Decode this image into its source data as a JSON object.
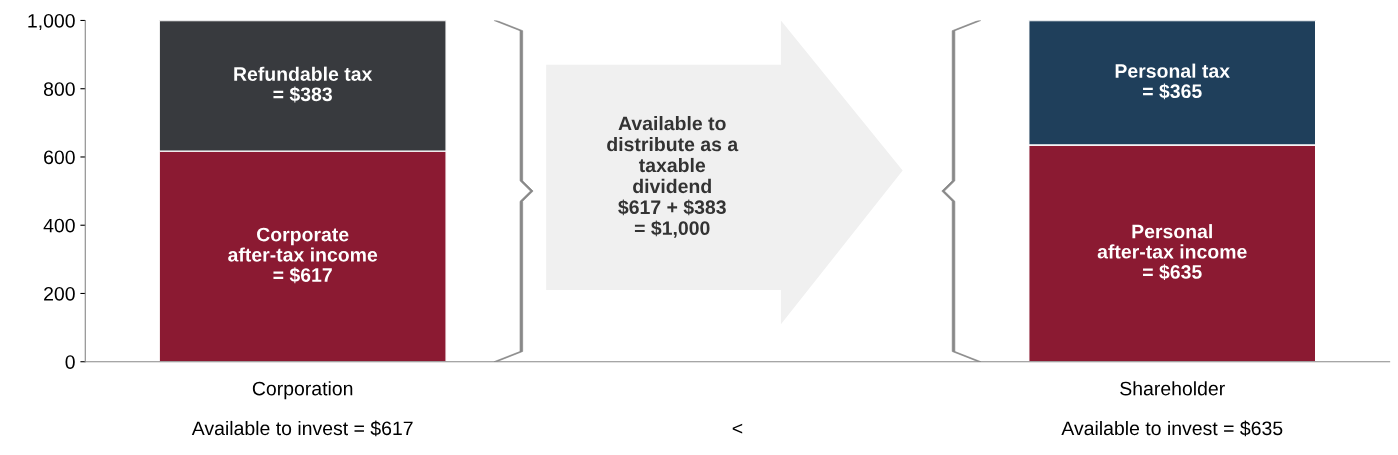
{
  "chart_data": {
    "type": "bar",
    "stacked": true,
    "categories": [
      "Corporation",
      null,
      "Shareholder"
    ],
    "series": [
      {
        "colors": [
          "#8b1a32",
          null,
          "#8b1a32"
        ],
        "values": [
          617,
          null,
          635
        ],
        "value_labels": [
          "Corporate\nafter-tax income\n= $617",
          null,
          "Personal\nafter-tax income\n= $635"
        ]
      },
      {
        "colors": [
          "#383a3e",
          null,
          "#1f3f5b"
        ],
        "values": [
          383,
          null,
          365
        ],
        "value_labels": [
          "Refundable tax\n= $383",
          null,
          "Personal tax\n= $365"
        ]
      }
    ],
    "ylim": [
      0,
      1000
    ],
    "yticks": [
      0,
      200,
      400,
      600,
      800,
      {
        "value": 1000,
        "label": "1,000"
      }
    ],
    "grid": false,
    "legend": false,
    "annotations": [
      "Available to invest = $617",
      "<",
      "Available to invest = $635",
      "Available to\ndistribute as a\ntaxable\ndividend\n$617 + $383\n= $1,000"
    ]
  }
}
